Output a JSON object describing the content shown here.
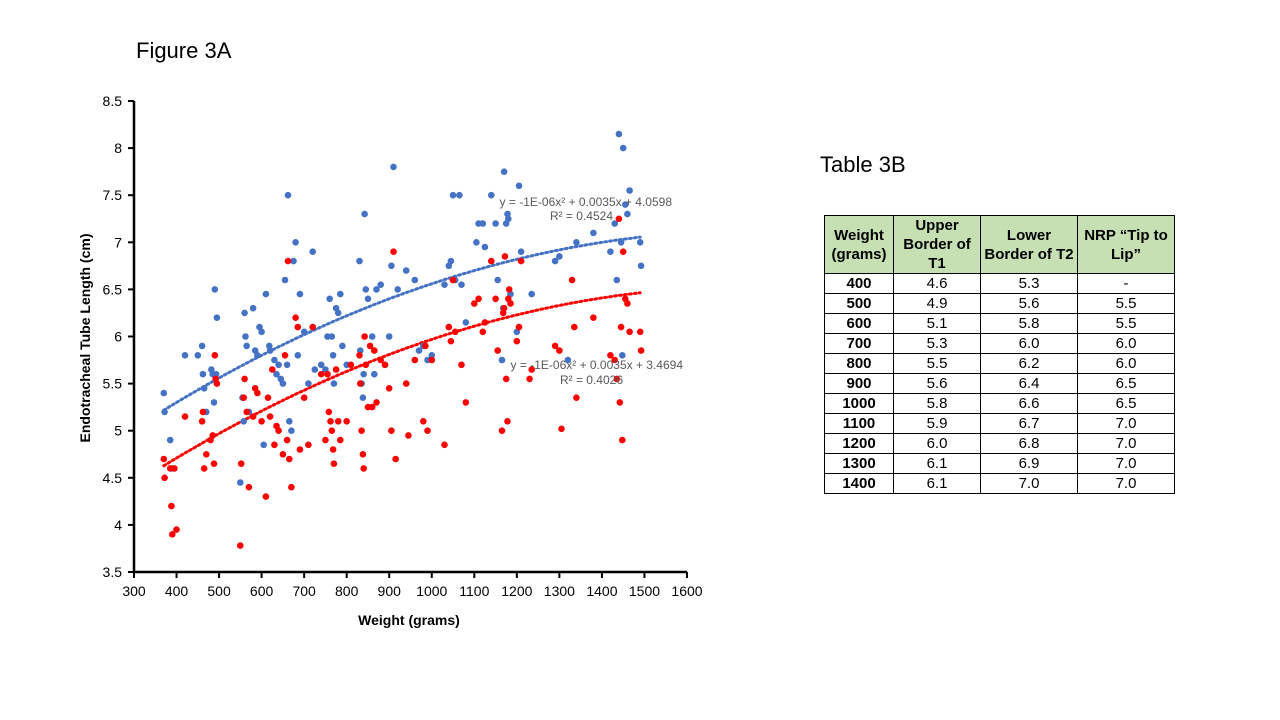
{
  "figure_title": "Figure 3A",
  "table_title": "Table 3B",
  "table": {
    "headers": [
      "Weight (grams)",
      "Upper Border of T1",
      "Lower Border of T2",
      "NRP “Tip to Lip”"
    ],
    "rows": [
      [
        "400",
        "4.6",
        "5.3",
        "-"
      ],
      [
        "500",
        "4.9",
        "5.6",
        "5.5"
      ],
      [
        "600",
        "5.1",
        "5.8",
        "5.5"
      ],
      [
        "700",
        "5.3",
        "6.0",
        "6.0"
      ],
      [
        "800",
        "5.5",
        "6.2",
        "6.0"
      ],
      [
        "900",
        "5.6",
        "6.4",
        "6.5"
      ],
      [
        "1000",
        "5.8",
        "6.6",
        "6.5"
      ],
      [
        "1100",
        "5.9",
        "6.7",
        "7.0"
      ],
      [
        "1200",
        "6.0",
        "6.8",
        "7.0"
      ],
      [
        "1300",
        "6.1",
        "6.9",
        "7.0"
      ],
      [
        "1400",
        "6.1",
        "7.0",
        "7.0"
      ]
    ]
  },
  "chart_data": {
    "type": "scatter",
    "title": "Figure 3A",
    "xlabel": "Weight (grams)",
    "ylabel": "Endotracheal Tube Length (cm)",
    "xlim": [
      300,
      1600
    ],
    "ylim": [
      3.5,
      8.5
    ],
    "xticks": [
      300,
      400,
      500,
      600,
      700,
      800,
      900,
      1000,
      1100,
      1200,
      1300,
      1400,
      1500,
      1600
    ],
    "yticks": [
      3.5,
      4,
      4.5,
      5,
      5.5,
      6,
      6.5,
      7,
      7.5,
      8,
      8.5
    ],
    "ytick_labels": [
      "3.5",
      "4",
      "4.5",
      "5",
      "5.5",
      "6",
      "6.5",
      "7",
      "7.5",
      "8",
      "8.5"
    ],
    "grid": false,
    "series": [
      {
        "color": "#4472c4",
        "trendline": {
          "type": "polynomial",
          "coefficients": [
            -1e-06,
            0.0035,
            4.0598
          ],
          "x_range": [
            370,
            1490
          ],
          "equation_label": "y = -1E-06x² + 0.0035x + 4.0598",
          "r2_label": "R² = 0.4524"
        },
        "points": [
          [
            370,
            5.4
          ],
          [
            372,
            5.2
          ],
          [
            385,
            4.9
          ],
          [
            390,
            4.6
          ],
          [
            420,
            5.8
          ],
          [
            450,
            5.8
          ],
          [
            460,
            5.9
          ],
          [
            462,
            5.6
          ],
          [
            465,
            5.45
          ],
          [
            470,
            5.2
          ],
          [
            482,
            5.65
          ],
          [
            485,
            5.6
          ],
          [
            488,
            5.3
          ],
          [
            490,
            6.5
          ],
          [
            493,
            5.6
          ],
          [
            495,
            6.2
          ],
          [
            550,
            4.45
          ],
          [
            555,
            5.35
          ],
          [
            558,
            5.1
          ],
          [
            560,
            6.25
          ],
          [
            562,
            6.0
          ],
          [
            565,
            5.9
          ],
          [
            570,
            5.2
          ],
          [
            580,
            6.3
          ],
          [
            585,
            5.85
          ],
          [
            590,
            5.8
          ],
          [
            595,
            6.1
          ],
          [
            600,
            6.05
          ],
          [
            605,
            4.85
          ],
          [
            610,
            6.45
          ],
          [
            618,
            5.9
          ],
          [
            620,
            5.85
          ],
          [
            630,
            5.75
          ],
          [
            635,
            5.6
          ],
          [
            640,
            5.7
          ],
          [
            645,
            5.55
          ],
          [
            650,
            5.5
          ],
          [
            655,
            6.6
          ],
          [
            660,
            5.7
          ],
          [
            662,
            7.5
          ],
          [
            665,
            5.1
          ],
          [
            670,
            5.0
          ],
          [
            675,
            6.8
          ],
          [
            680,
            7.0
          ],
          [
            685,
            5.8
          ],
          [
            690,
            6.45
          ],
          [
            700,
            6.05
          ],
          [
            710,
            5.5
          ],
          [
            720,
            6.9
          ],
          [
            725,
            5.65
          ],
          [
            740,
            5.7
          ],
          [
            750,
            5.65
          ],
          [
            755,
            6.0
          ],
          [
            760,
            6.4
          ],
          [
            765,
            6.0
          ],
          [
            768,
            5.8
          ],
          [
            770,
            5.5
          ],
          [
            775,
            6.3
          ],
          [
            780,
            6.25
          ],
          [
            785,
            6.45
          ],
          [
            790,
            5.9
          ],
          [
            800,
            5.7
          ],
          [
            830,
            6.8
          ],
          [
            832,
            5.85
          ],
          [
            835,
            5.5
          ],
          [
            838,
            5.35
          ],
          [
            840,
            5.6
          ],
          [
            842,
            7.3
          ],
          [
            845,
            6.5
          ],
          [
            850,
            6.4
          ],
          [
            860,
            6.0
          ],
          [
            865,
            5.6
          ],
          [
            870,
            6.5
          ],
          [
            880,
            6.55
          ],
          [
            890,
            5.7
          ],
          [
            900,
            6.0
          ],
          [
            905,
            6.75
          ],
          [
            910,
            7.8
          ],
          [
            920,
            6.5
          ],
          [
            940,
            6.7
          ],
          [
            960,
            6.6
          ],
          [
            970,
            5.85
          ],
          [
            980,
            5.9
          ],
          [
            990,
            5.75
          ],
          [
            1000,
            5.8
          ],
          [
            1030,
            6.55
          ],
          [
            1040,
            6.75
          ],
          [
            1045,
            6.8
          ],
          [
            1050,
            7.5
          ],
          [
            1055,
            6.6
          ],
          [
            1065,
            7.5
          ],
          [
            1070,
            6.55
          ],
          [
            1080,
            6.15
          ],
          [
            1105,
            7.0
          ],
          [
            1110,
            7.2
          ],
          [
            1120,
            7.2
          ],
          [
            1125,
            6.95
          ],
          [
            1140,
            7.5
          ],
          [
            1150,
            7.2
          ],
          [
            1155,
            6.6
          ],
          [
            1165,
            5.75
          ],
          [
            1168,
            6.3
          ],
          [
            1170,
            7.75
          ],
          [
            1175,
            7.2
          ],
          [
            1178,
            7.3
          ],
          [
            1180,
            7.25
          ],
          [
            1185,
            6.45
          ],
          [
            1200,
            6.05
          ],
          [
            1205,
            7.6
          ],
          [
            1210,
            6.9
          ],
          [
            1235,
            6.45
          ],
          [
            1290,
            6.8
          ],
          [
            1300,
            6.85
          ],
          [
            1320,
            5.75
          ],
          [
            1340,
            7.0
          ],
          [
            1380,
            7.1
          ],
          [
            1420,
            6.9
          ],
          [
            1430,
            7.2
          ],
          [
            1435,
            6.6
          ],
          [
            1440,
            8.15
          ],
          [
            1445,
            7.0
          ],
          [
            1448,
            5.8
          ],
          [
            1450,
            8.0
          ],
          [
            1455,
            7.4
          ],
          [
            1460,
            7.3
          ],
          [
            1465,
            7.55
          ],
          [
            1490,
            7.0
          ],
          [
            1492,
            6.75
          ]
        ]
      },
      {
        "color": "#ff0000",
        "trendline": {
          "type": "polynomial",
          "coefficients": [
            -1e-06,
            0.0035,
            3.4694
          ],
          "x_range": [
            370,
            1490
          ],
          "equation_label": "y = -1E-06x² + 0.0035x + 3.4694",
          "r2_label": "R² = 0.4026"
        },
        "points": [
          [
            370,
            4.7
          ],
          [
            372,
            4.5
          ],
          [
            385,
            4.6
          ],
          [
            388,
            4.2
          ],
          [
            390,
            3.9
          ],
          [
            395,
            4.6
          ],
          [
            400,
            3.95
          ],
          [
            420,
            5.15
          ],
          [
            460,
            5.1
          ],
          [
            462,
            5.2
          ],
          [
            465,
            4.6
          ],
          [
            470,
            4.75
          ],
          [
            480,
            4.9
          ],
          [
            485,
            4.95
          ],
          [
            488,
            4.65
          ],
          [
            490,
            5.8
          ],
          [
            492,
            5.55
          ],
          [
            495,
            5.5
          ],
          [
            550,
            3.78
          ],
          [
            552,
            4.65
          ],
          [
            558,
            5.35
          ],
          [
            560,
            5.55
          ],
          [
            565,
            5.2
          ],
          [
            570,
            4.4
          ],
          [
            580,
            5.15
          ],
          [
            585,
            5.45
          ],
          [
            590,
            5.4
          ],
          [
            600,
            5.1
          ],
          [
            610,
            4.3
          ],
          [
            615,
            5.35
          ],
          [
            620,
            5.15
          ],
          [
            625,
            5.65
          ],
          [
            630,
            4.85
          ],
          [
            635,
            5.05
          ],
          [
            640,
            5.0
          ],
          [
            650,
            4.75
          ],
          [
            655,
            5.8
          ],
          [
            660,
            4.9
          ],
          [
            662,
            6.8
          ],
          [
            665,
            4.7
          ],
          [
            670,
            4.4
          ],
          [
            680,
            6.2
          ],
          [
            685,
            6.1
          ],
          [
            690,
            4.8
          ],
          [
            700,
            5.35
          ],
          [
            710,
            4.85
          ],
          [
            720,
            6.1
          ],
          [
            740,
            5.6
          ],
          [
            750,
            4.9
          ],
          [
            755,
            5.6
          ],
          [
            758,
            5.2
          ],
          [
            762,
            5.1
          ],
          [
            765,
            5.0
          ],
          [
            768,
            4.8
          ],
          [
            770,
            4.65
          ],
          [
            775,
            5.65
          ],
          [
            780,
            5.1
          ],
          [
            785,
            4.9
          ],
          [
            800,
            5.1
          ],
          [
            810,
            5.7
          ],
          [
            830,
            5.8
          ],
          [
            832,
            5.5
          ],
          [
            835,
            5.0
          ],
          [
            838,
            4.75
          ],
          [
            840,
            4.6
          ],
          [
            842,
            6.0
          ],
          [
            845,
            5.7
          ],
          [
            850,
            5.25
          ],
          [
            855,
            5.9
          ],
          [
            860,
            5.25
          ],
          [
            865,
            5.85
          ],
          [
            870,
            5.3
          ],
          [
            880,
            5.75
          ],
          [
            890,
            5.7
          ],
          [
            900,
            5.45
          ],
          [
            905,
            5.0
          ],
          [
            910,
            6.9
          ],
          [
            915,
            4.7
          ],
          [
            940,
            5.5
          ],
          [
            945,
            4.95
          ],
          [
            960,
            5.75
          ],
          [
            980,
            5.1
          ],
          [
            985,
            5.9
          ],
          [
            990,
            5.0
          ],
          [
            1000,
            5.75
          ],
          [
            1030,
            4.85
          ],
          [
            1040,
            6.1
          ],
          [
            1045,
            5.95
          ],
          [
            1050,
            6.6
          ],
          [
            1055,
            6.05
          ],
          [
            1070,
            5.7
          ],
          [
            1080,
            5.3
          ],
          [
            1100,
            6.35
          ],
          [
            1110,
            6.4
          ],
          [
            1120,
            6.05
          ],
          [
            1125,
            6.15
          ],
          [
            1140,
            6.8
          ],
          [
            1150,
            6.4
          ],
          [
            1155,
            5.85
          ],
          [
            1165,
            5.0
          ],
          [
            1168,
            6.25
          ],
          [
            1170,
            6.3
          ],
          [
            1172,
            6.85
          ],
          [
            1175,
            5.55
          ],
          [
            1178,
            5.1
          ],
          [
            1180,
            6.4
          ],
          [
            1182,
            6.5
          ],
          [
            1185,
            6.35
          ],
          [
            1200,
            5.95
          ],
          [
            1205,
            6.1
          ],
          [
            1210,
            6.8
          ],
          [
            1230,
            5.55
          ],
          [
            1235,
            5.65
          ],
          [
            1290,
            5.9
          ],
          [
            1300,
            5.85
          ],
          [
            1305,
            5.02
          ],
          [
            1330,
            6.6
          ],
          [
            1335,
            6.1
          ],
          [
            1340,
            5.35
          ],
          [
            1380,
            6.2
          ],
          [
            1420,
            5.8
          ],
          [
            1430,
            5.75
          ],
          [
            1435,
            5.55
          ],
          [
            1440,
            7.25
          ],
          [
            1442,
            5.3
          ],
          [
            1445,
            6.1
          ],
          [
            1448,
            4.9
          ],
          [
            1450,
            6.9
          ],
          [
            1455,
            6.4
          ],
          [
            1460,
            6.35
          ],
          [
            1465,
            6.05
          ],
          [
            1490,
            6.05
          ],
          [
            1492,
            5.85
          ]
        ]
      }
    ]
  }
}
